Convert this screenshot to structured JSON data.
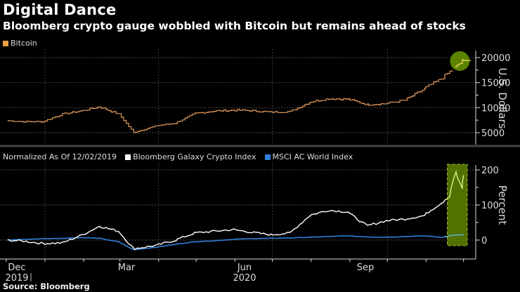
{
  "header": {
    "title": "Digital Dance",
    "subtitle": "Bloomberg crypto gauge wobbled with Bitcoin but remains ahead of stocks"
  },
  "source": "Source: Bloomberg",
  "colors": {
    "bitcoin": "#e0985a",
    "crypto_index": "#ffffff",
    "msci": "#2e7fd9",
    "highlight": "#6a8f00",
    "highlight_line": "#c8e06a"
  },
  "chart_data": [
    {
      "type": "line",
      "title": "",
      "legend": [
        {
          "name": "Bitcoin",
          "color": "#f0a040"
        }
      ],
      "legend_position": "top-left",
      "ylabel": "U.S. Dollars",
      "ylim": [
        2500,
        21500
      ],
      "yticks": [
        5000,
        10000,
        15000,
        20000
      ],
      "ytick_labels": [
        "5000",
        "10000",
        "15000",
        "20000"
      ],
      "grid": true,
      "x": [
        "2019-12-02",
        "2019-12-15",
        "2019-12-31",
        "2020-01-15",
        "2020-01-31",
        "2020-02-14",
        "2020-02-29",
        "2020-03-12",
        "2020-03-31",
        "2020-04-15",
        "2020-04-30",
        "2020-05-15",
        "2020-05-31",
        "2020-06-15",
        "2020-06-30",
        "2020-07-15",
        "2020-07-31",
        "2020-08-15",
        "2020-08-31",
        "2020-09-15",
        "2020-09-30",
        "2020-10-15",
        "2020-10-31",
        "2020-11-15",
        "2020-11-30",
        "2020-12-01"
      ],
      "series": [
        {
          "name": "Bitcoin",
          "values": [
            7400,
            7200,
            7200,
            8700,
            9400,
            10200,
            8700,
            5000,
            6400,
            6900,
            8800,
            9300,
            9500,
            9400,
            9100,
            9200,
            11100,
            11800,
            11700,
            10600,
            10800,
            11500,
            13800,
            16000,
            19200,
            19400
          ]
        }
      ],
      "annotation": "green circle highlighting latest Bitcoin value near 19400"
    },
    {
      "type": "line",
      "title": "",
      "legend": [
        {
          "name": "Normalized As Of 12/02/2019",
          "color": null
        },
        {
          "name": "Bloomberg Galaxy Crypto Index",
          "color": "#ffffff"
        },
        {
          "name": "MSCI AC World Index",
          "color": "#2e7fd9"
        }
      ],
      "legend_position": "top-left",
      "ylabel": "Percent",
      "ylim": [
        -40,
        215
      ],
      "yticks": [
        0,
        100,
        200
      ],
      "ytick_labels": [
        "0",
        "100",
        "200"
      ],
      "grid": true,
      "x": [
        "2019-12-02",
        "2019-12-15",
        "2019-12-31",
        "2020-01-15",
        "2020-01-31",
        "2020-02-14",
        "2020-02-29",
        "2020-03-12",
        "2020-03-31",
        "2020-04-15",
        "2020-04-30",
        "2020-05-15",
        "2020-05-31",
        "2020-06-15",
        "2020-06-30",
        "2020-07-15",
        "2020-07-31",
        "2020-08-15",
        "2020-08-31",
        "2020-09-15",
        "2020-09-30",
        "2020-10-15",
        "2020-10-31",
        "2020-11-15",
        "2020-11-20",
        "2020-11-25",
        "2020-11-30",
        "2020-12-01"
      ],
      "series": [
        {
          "name": "Bloomberg Galaxy Crypto Index",
          "values": [
            0,
            -3,
            -10,
            -8,
            15,
            40,
            25,
            -25,
            -15,
            0,
            20,
            25,
            30,
            22,
            15,
            20,
            70,
            85,
            80,
            40,
            55,
            60,
            70,
            110,
            125,
            195,
            145,
            185
          ]
        },
        {
          "name": "MSCI AC World Index",
          "values": [
            0,
            2,
            4,
            5,
            7,
            5,
            -5,
            -28,
            -20,
            -12,
            -5,
            -2,
            2,
            4,
            5,
            6,
            8,
            10,
            12,
            9,
            8,
            10,
            12,
            8,
            12,
            14,
            15,
            14
          ]
        }
      ],
      "annotation": "green shaded box highlighting the late-November surge"
    }
  ],
  "xaxis": {
    "ticks": [
      {
        "month": "Dec",
        "year": "2019"
      },
      {
        "month": "Mar",
        "year": ""
      },
      {
        "month": "Jun",
        "year": "2020"
      },
      {
        "month": "Sep",
        "year": ""
      }
    ]
  }
}
